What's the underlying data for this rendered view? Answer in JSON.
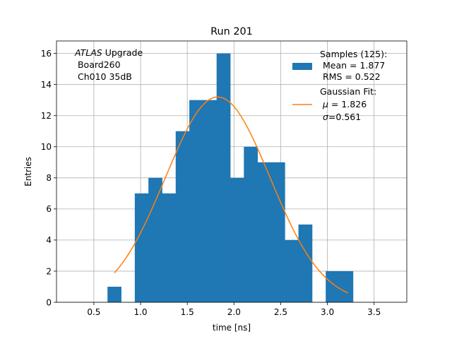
{
  "chart_data": {
    "type": "bar",
    "title": "Run 201",
    "xlabel": "time [ns]",
    "ylabel": "Entries",
    "xlim": [
      0.1,
      3.85
    ],
    "ylim": [
      0,
      16.8
    ],
    "xticks": [
      0.5,
      1.0,
      1.5,
      2.0,
      2.5,
      3.0,
      3.5
    ],
    "xtick_labels": [
      "0.5",
      "1.0",
      "1.5",
      "2.0",
      "2.5",
      "3.0",
      "3.5"
    ],
    "yticks": [
      0,
      2,
      4,
      6,
      8,
      10,
      12,
      14,
      16
    ],
    "ytick_labels": [
      "0",
      "2",
      "4",
      "6",
      "8",
      "10",
      "12",
      "14",
      "16"
    ],
    "grid": true,
    "colors": {
      "histogram": "#1f77b4",
      "fit": "#ff7f0e",
      "grid": "#b0b0b0"
    },
    "bins": [
      {
        "x0": 0.646,
        "x1": 0.792,
        "value": 1
      },
      {
        "x0": 0.938,
        "x1": 1.084,
        "value": 7
      },
      {
        "x0": 1.084,
        "x1": 1.23,
        "value": 8
      },
      {
        "x0": 1.23,
        "x1": 1.376,
        "value": 7
      },
      {
        "x0": 1.376,
        "x1": 1.522,
        "value": 11
      },
      {
        "x0": 1.522,
        "x1": 1.668,
        "value": 13
      },
      {
        "x0": 1.668,
        "x1": 1.814,
        "value": 13
      },
      {
        "x0": 1.814,
        "x1": 1.96,
        "value": 16
      },
      {
        "x0": 1.96,
        "x1": 2.106,
        "value": 8
      },
      {
        "x0": 2.106,
        "x1": 2.252,
        "value": 10
      },
      {
        "x0": 2.252,
        "x1": 2.398,
        "value": 9
      },
      {
        "x0": 2.398,
        "x1": 2.544,
        "value": 9
      },
      {
        "x0": 2.544,
        "x1": 2.69,
        "value": 4
      },
      {
        "x0": 2.69,
        "x1": 2.836,
        "value": 5
      },
      {
        "x0": 2.982,
        "x1": 3.128,
        "value": 2
      },
      {
        "x0": 3.128,
        "x1": 3.274,
        "value": 2
      }
    ],
    "fit": {
      "name": "Gaussian Fit",
      "amplitude": 13.2,
      "mu": 1.826,
      "sigma": 0.561,
      "x_range": [
        0.72,
        3.22
      ]
    },
    "annotation": {
      "line1_italic": "ATLAS",
      "line1_rest": " Upgrade",
      "line2": " Board260",
      "line3": " Ch010 35dB"
    },
    "legend": {
      "location": "upper-right",
      "samples_title": "Samples (125):",
      "samples_mean": " Mean = 1.877",
      "samples_rms": " RMS = 0.522",
      "fit_title": "Gaussian Fit:",
      "fit_mu_symbol": "μ",
      "fit_mu_rest": " = 1.826",
      "fit_sigma_symbol": "σ",
      "fit_sigma_rest": "=0.561"
    }
  }
}
